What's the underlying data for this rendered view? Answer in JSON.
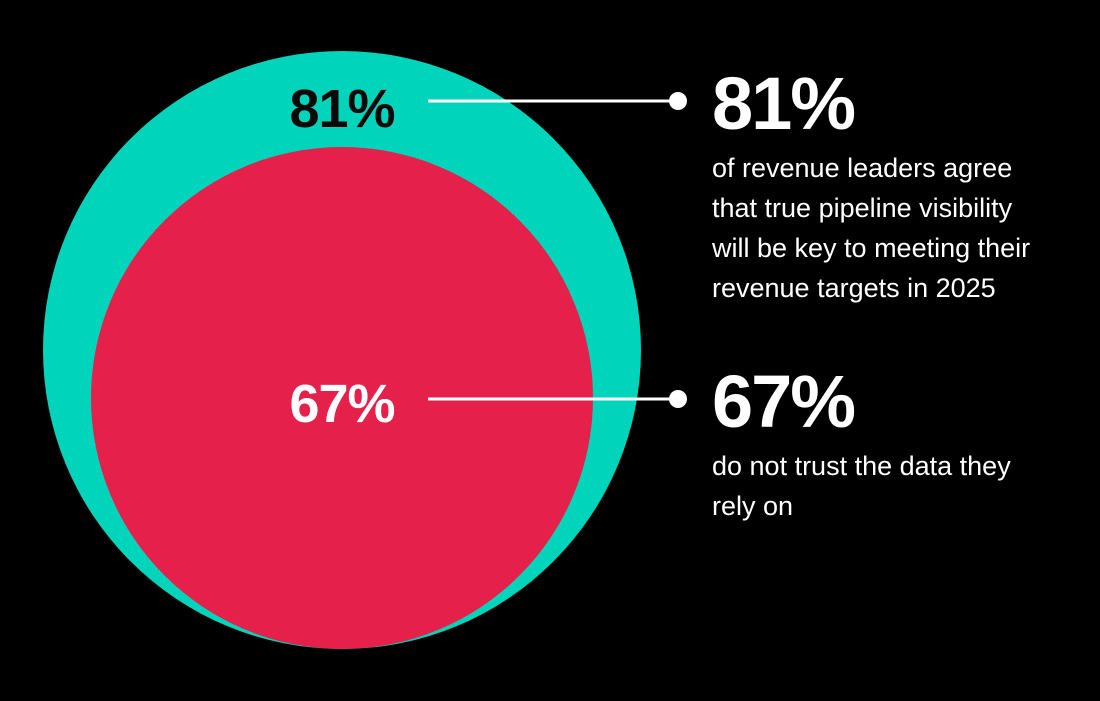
{
  "colors": {
    "background": "#000000",
    "outer_circle": "#00d4bb",
    "inner_circle": "#e5204b",
    "outer_label": "#0a0a0a",
    "inner_label": "#ffffff",
    "connector": "#ffffff",
    "text": "#ffffff"
  },
  "chart_data": {
    "type": "nested-circles",
    "title": "",
    "series": [
      {
        "value": 81,
        "label": "81%",
        "description": "of revenue leaders agree that true pipeline visibility will be key to meeting their revenue targets in 2025",
        "description_lines": [
          "of revenue leaders agree",
          "that true pipeline visibility",
          "will be key to meeting their",
          "revenue targets in 2025"
        ]
      },
      {
        "value": 67,
        "label": "67%",
        "description": "do not trust the data they rely on",
        "description_lines": [
          "do not trust the data they",
          "rely on"
        ]
      }
    ]
  }
}
